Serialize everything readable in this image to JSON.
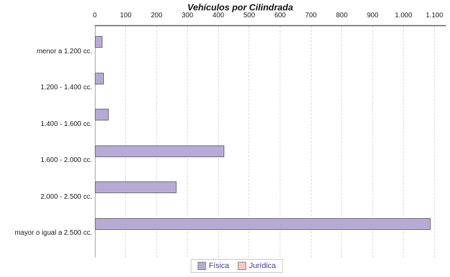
{
  "chart_data": {
    "type": "bar",
    "orientation": "horizontal",
    "title": "Vehículos por Cilindrada",
    "categories": [
      "menor a 1.200 cc.",
      "1.200 - 1.400 cc.",
      "1.400 - 1.600 cc.",
      "1.600 - 2.000 cc.",
      "2.000 - 2.500 cc.",
      "mayor o igual a 2.500 cc."
    ],
    "series": [
      {
        "name": "Física",
        "color": "#b5abd6",
        "values": [
          20,
          25,
          40,
          415,
          260,
          1083
        ]
      },
      {
        "name": "Jurídica",
        "color": "#f6c7c7",
        "values": [
          0,
          0,
          0,
          0,
          0,
          0
        ]
      }
    ],
    "x_axis": {
      "position": "top",
      "min": 0,
      "max": 1137,
      "tick_interval": 100,
      "tick_labels": [
        "0",
        "100",
        "200",
        "300",
        "400",
        "500",
        "600",
        "700",
        "800",
        "900",
        "1.000",
        "1.100"
      ]
    },
    "grid": "vertical-dashed",
    "legend_position": "bottom"
  },
  "colors": {
    "background": "#ffffff",
    "bar_border": "#6f6f6f",
    "axis_line": "#858585",
    "gridline": "#d8d8d8",
    "text": "#1a1a1a",
    "legend_text": "#443c8f",
    "legend_border": "#c4c4d4"
  }
}
